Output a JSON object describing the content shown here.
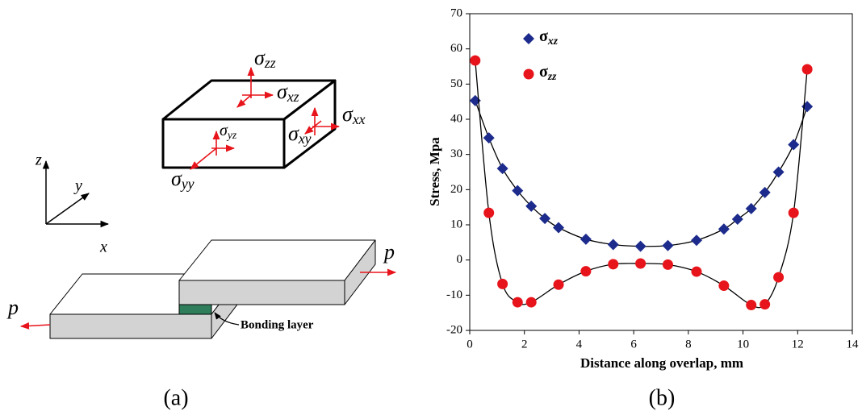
{
  "diagram": {
    "stress_labels": [
      "σzz",
      "σxz",
      "σxx",
      "σxy",
      "σyz",
      "σyy"
    ],
    "axes": [
      "z",
      "y",
      "x"
    ],
    "loads": [
      "p",
      "p"
    ],
    "bonding_label": "Bonding layer"
  },
  "captions": [
    "(a)",
    "(b)"
  ],
  "chart_data": {
    "type": "scatter",
    "xlabel": "Distance along overlap, mm",
    "ylabel": "Stress, Mpa",
    "xlim": [
      0,
      14
    ],
    "xticks": [
      0,
      2,
      4,
      6,
      8,
      10,
      12,
      14
    ],
    "ylim": [
      -20,
      70
    ],
    "yticks": [
      -20,
      -10,
      0,
      10,
      20,
      30,
      40,
      50,
      60,
      70
    ],
    "fit_line": true,
    "series": [
      {
        "name": "σxz",
        "marker": "diamond",
        "color": "#1c2b8c",
        "x": [
          0.2,
          0.7,
          1.2,
          1.75,
          2.25,
          2.75,
          3.25,
          4.25,
          5.25,
          6.25,
          7.25,
          8.3,
          9.3,
          9.8,
          10.3,
          10.8,
          11.3,
          11.85,
          12.35
        ],
        "values": [
          45.3,
          34.7,
          26,
          19.7,
          15.3,
          11.8,
          9.2,
          5.9,
          4.4,
          3.9,
          4.1,
          5.6,
          8.8,
          11.6,
          14.6,
          19.2,
          25,
          32.8,
          43.6
        ]
      },
      {
        "name": "σzz",
        "marker": "circle",
        "color": "#e8141b",
        "x": [
          0.2,
          0.7,
          1.2,
          1.75,
          2.25,
          3.25,
          4.25,
          5.25,
          6.25,
          7.25,
          8.3,
          9.3,
          10.3,
          10.8,
          11.3,
          11.85,
          12.35
        ],
        "values": [
          56.7,
          13.4,
          -6.8,
          -12,
          -12,
          -7,
          -3.2,
          -1.2,
          -1,
          -1.3,
          -3.3,
          -7.3,
          -12.8,
          -12.6,
          -4.9,
          13.4,
          54.2
        ]
      }
    ]
  }
}
